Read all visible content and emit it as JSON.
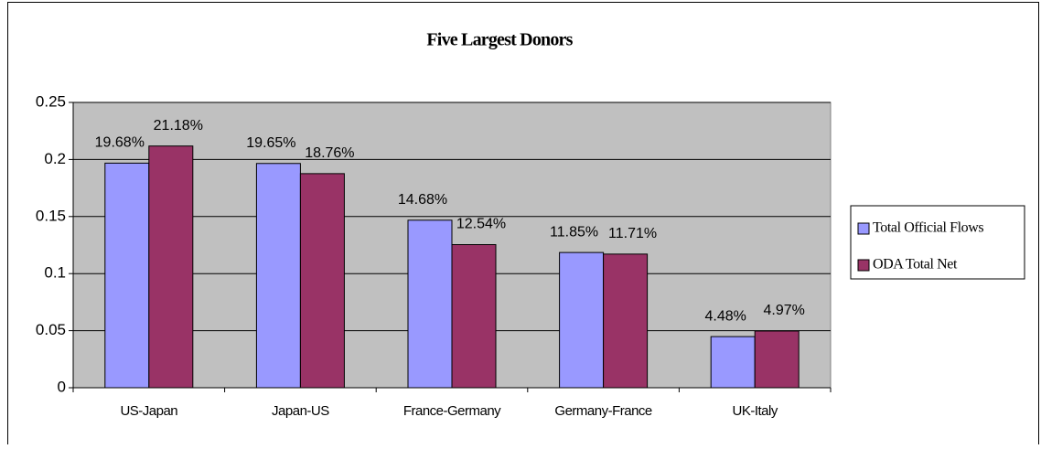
{
  "chart_data": {
    "type": "bar",
    "title": "Five Largest Donors",
    "categories": [
      "US-Japan",
      "Japan-US",
      "France-Germany",
      "Germany-France",
      "UK-Italy"
    ],
    "series": [
      {
        "name": "Total Official Flows",
        "color": "#9999ff",
        "values": [
          0.1968,
          0.1965,
          0.1468,
          0.1185,
          0.0448
        ],
        "value_labels": [
          "19.68%",
          "19.65%",
          "14.68%",
          "11.85%",
          "4.48%"
        ]
      },
      {
        "name": "ODA Total Net",
        "color": "#993366",
        "values": [
          0.2118,
          0.1876,
          0.1254,
          0.1171,
          0.0497
        ],
        "value_labels": [
          "21.18%",
          "18.76%",
          "12.54%",
          "11.71%",
          "4.97%"
        ]
      }
    ],
    "ylim": [
      0,
      0.25
    ],
    "yticks": [
      0,
      0.05,
      0.1,
      0.15,
      0.2,
      0.25
    ],
    "grid": true,
    "legend": "right"
  }
}
